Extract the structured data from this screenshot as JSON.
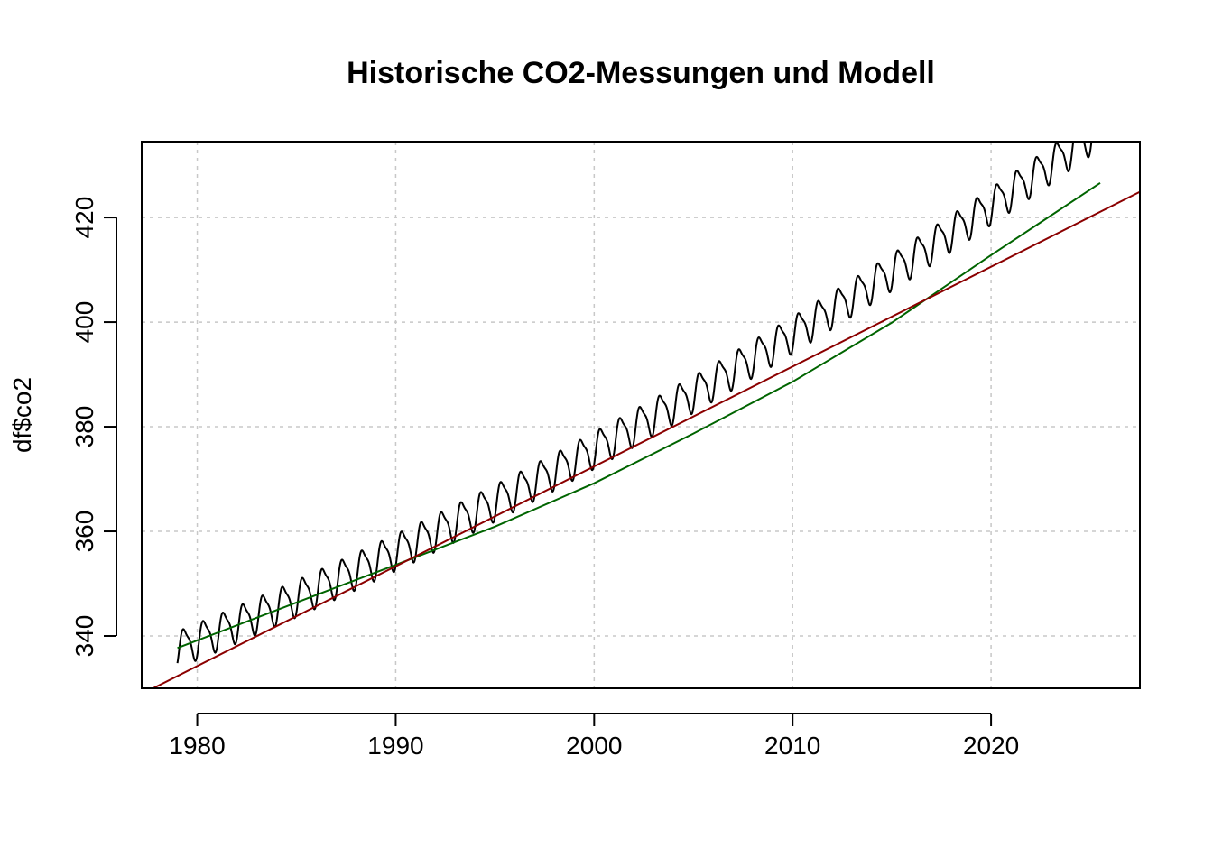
{
  "chart_data": {
    "type": "line",
    "title": "Historische CO2-Messungen und Modell",
    "xlabel": "",
    "ylabel": "df$co2",
    "xlim": [
      1977.2,
      2027.5
    ],
    "ylim": [
      330,
      434.5
    ],
    "x_ticks": [
      1980,
      1990,
      2000,
      2010,
      2020
    ],
    "x_tick_labels": [
      "1980",
      "1990",
      "2000",
      "2010",
      "2020"
    ],
    "y_ticks": [
      340,
      360,
      380,
      400,
      420
    ],
    "y_tick_labels": [
      "340",
      "360",
      "380",
      "400",
      "420"
    ],
    "grid": true,
    "legend": "none",
    "series": [
      {
        "role": "measurements",
        "color": "#000000",
        "x_start": 1979.0,
        "x_end": 2025.6,
        "samples_per_year": 52,
        "trend_at_start": 337.7,
        "trend_slope_per_year": 1.55,
        "trend_curvature": 0.0126,
        "seasonal_amplitude": 3.2
      },
      {
        "role": "smoothed-trend",
        "color": "#006400",
        "x": [
          1979.0,
          1985.0,
          1990.0,
          1995.0,
          2000.0,
          2005.0,
          2010.0,
          2015.0,
          2020.0,
          2025.5
        ],
        "values": [
          337.7,
          346.4,
          353.6,
          360.9,
          369.2,
          378.7,
          388.6,
          399.9,
          412.8,
          426.6
        ]
      },
      {
        "role": "linear-model",
        "color": "#8b0000",
        "x": [
          1977.2,
          2027.5
        ],
        "values": [
          328.9,
          424.9
        ]
      }
    ]
  }
}
